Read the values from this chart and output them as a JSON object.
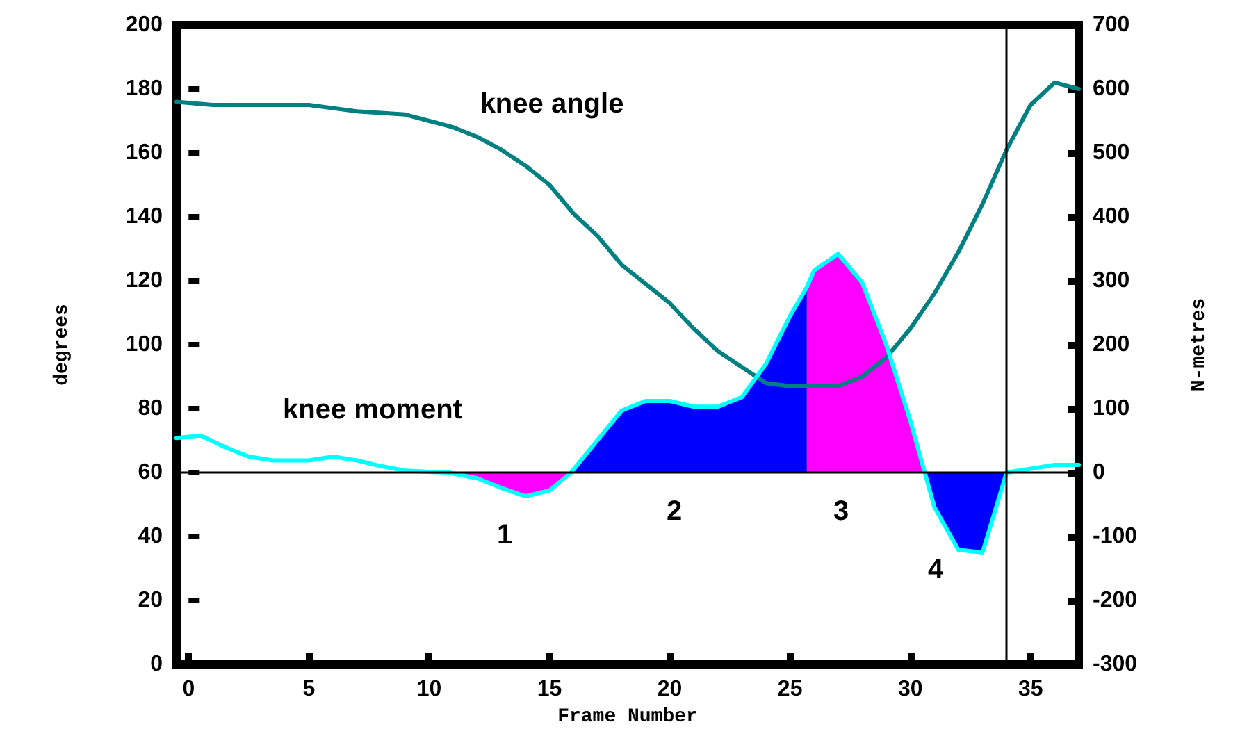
{
  "chart_data": {
    "type": "line",
    "xlabel": "Frame Number",
    "ylabel": "degrees",
    "y2label": "N-metres",
    "xlim": [
      -0.5,
      37
    ],
    "xticks": [
      0,
      5,
      10,
      15,
      20,
      25,
      30,
      35
    ],
    "ylim": [
      0,
      200
    ],
    "yticks": [
      0,
      20,
      40,
      60,
      80,
      100,
      120,
      140,
      160,
      180,
      200
    ],
    "y2lim": [
      -300,
      700
    ],
    "y2ticks": [
      -300,
      -200,
      -100,
      0,
      100,
      200,
      300,
      400,
      500,
      600,
      700
    ],
    "grid": false,
    "marker": "none",
    "line_style": "solid",
    "series": [
      {
        "type": "area",
        "axis": "y2",
        "color": "#ff00ff",
        "x": [
          10.8,
          12,
          13,
          14,
          15,
          15.9
        ],
        "values": [
          0,
          -9,
          -24,
          -37,
          -28,
          0
        ]
      },
      {
        "type": "area",
        "axis": "y2",
        "color": "#0000ff",
        "x": [
          15.9,
          17,
          18,
          19,
          20,
          21,
          22,
          23,
          24,
          25,
          25.7
        ],
        "values": [
          0,
          51,
          97,
          112,
          112,
          103,
          103,
          118,
          170,
          245,
          290
        ]
      },
      {
        "type": "area",
        "axis": "y2",
        "color": "#ff00ff",
        "x": [
          25.7,
          26,
          27,
          28,
          29,
          30,
          30.6
        ],
        "values": [
          290,
          316,
          342,
          297,
          200,
          81,
          0
        ]
      },
      {
        "type": "area",
        "axis": "y2",
        "color": "#0000ff",
        "x": [
          30.6,
          31,
          32,
          33,
          34
        ],
        "values": [
          0,
          -54,
          -121,
          -125,
          0
        ]
      },
      {
        "color": "#008080",
        "x": [
          -0.5,
          1,
          5,
          7,
          9,
          10,
          11,
          12,
          13,
          14,
          15,
          16,
          17,
          18,
          19,
          20,
          21,
          22,
          23,
          24,
          25,
          26,
          27,
          28,
          29,
          30,
          31,
          32,
          33,
          34,
          35,
          36,
          37
        ],
        "values": [
          176,
          175,
          175,
          173,
          172,
          170,
          168,
          165,
          161,
          156,
          150,
          141,
          134,
          125,
          119,
          113,
          105,
          98,
          93,
          88,
          87,
          87,
          87,
          90,
          96,
          105,
          116,
          129,
          144,
          161,
          175,
          182,
          180
        ]
      },
      {
        "axis": "y2",
        "color": "#00ffff",
        "x": [
          -0.5,
          0.5,
          1.5,
          2.5,
          3.5,
          5,
          6,
          7,
          8,
          9,
          10,
          10.8,
          12,
          13,
          14,
          15,
          15.9,
          17,
          18,
          19,
          20,
          21,
          22,
          23,
          24,
          25,
          25.7,
          26,
          27,
          28,
          29,
          30,
          30.6,
          31,
          32,
          33,
          34,
          35,
          36,
          37
        ],
        "values": [
          54,
          58,
          40,
          25,
          19,
          19,
          25,
          19,
          10,
          3,
          1,
          0,
          -9,
          -24,
          -37,
          -28,
          0,
          51,
          97,
          112,
          112,
          103,
          103,
          118,
          170,
          245,
          290,
          316,
          342,
          297,
          200,
          81,
          0,
          -54,
          -121,
          -125,
          0,
          6,
          12,
          12
        ]
      }
    ],
    "ref_lines": [
      {
        "axis": "y2",
        "value": 0,
        "color": "#000000"
      },
      {
        "axis": "x",
        "value": 34,
        "color": "#000000"
      }
    ],
    "annotations": [
      "knee angle",
      "knee moment",
      "1",
      "2",
      "3",
      "4"
    ]
  }
}
